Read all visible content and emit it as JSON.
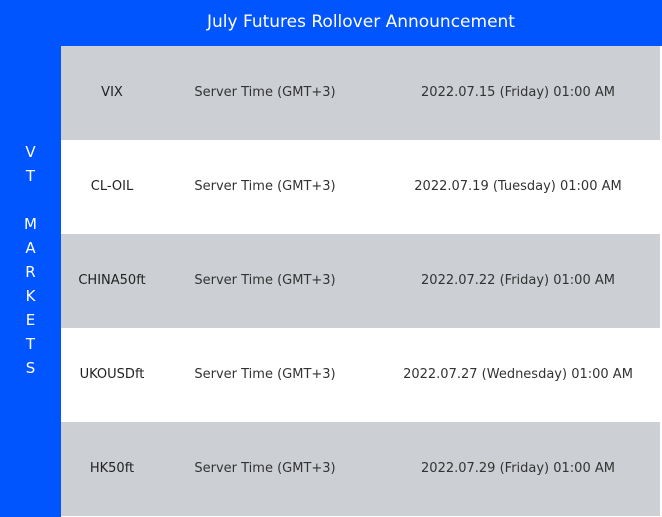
{
  "title": "July Futures Rollover Announcement",
  "brand_letters": [
    "V",
    "T",
    " ",
    "M",
    "A",
    "R",
    "K",
    "E",
    "T",
    "S"
  ],
  "colors": {
    "accent": "#0055FE",
    "row_gray": "#CCCFD3"
  },
  "rows": [
    {
      "symbol": "VIX",
      "timezone": "Server Time (GMT+3)",
      "datetime": "2022.07.15 (Friday)  01:00 AM"
    },
    {
      "symbol": "CL-OIL",
      "timezone": "Server Time (GMT+3)",
      "datetime": "2022.07.19 (Tuesday)  01:00 AM"
    },
    {
      "symbol": "CHINA50ft",
      "timezone": "Server Time (GMT+3)",
      "datetime": "2022.07.22 (Friday)  01:00 AM"
    },
    {
      "symbol": "UKOUSDft",
      "timezone": "Server Time (GMT+3)",
      "datetime": "2022.07.27 (Wednesday)  01:00 AM"
    },
    {
      "symbol": "HK50ft",
      "timezone": "Server Time (GMT+3)",
      "datetime": "2022.07.29 (Friday)  01:00 AM"
    }
  ]
}
